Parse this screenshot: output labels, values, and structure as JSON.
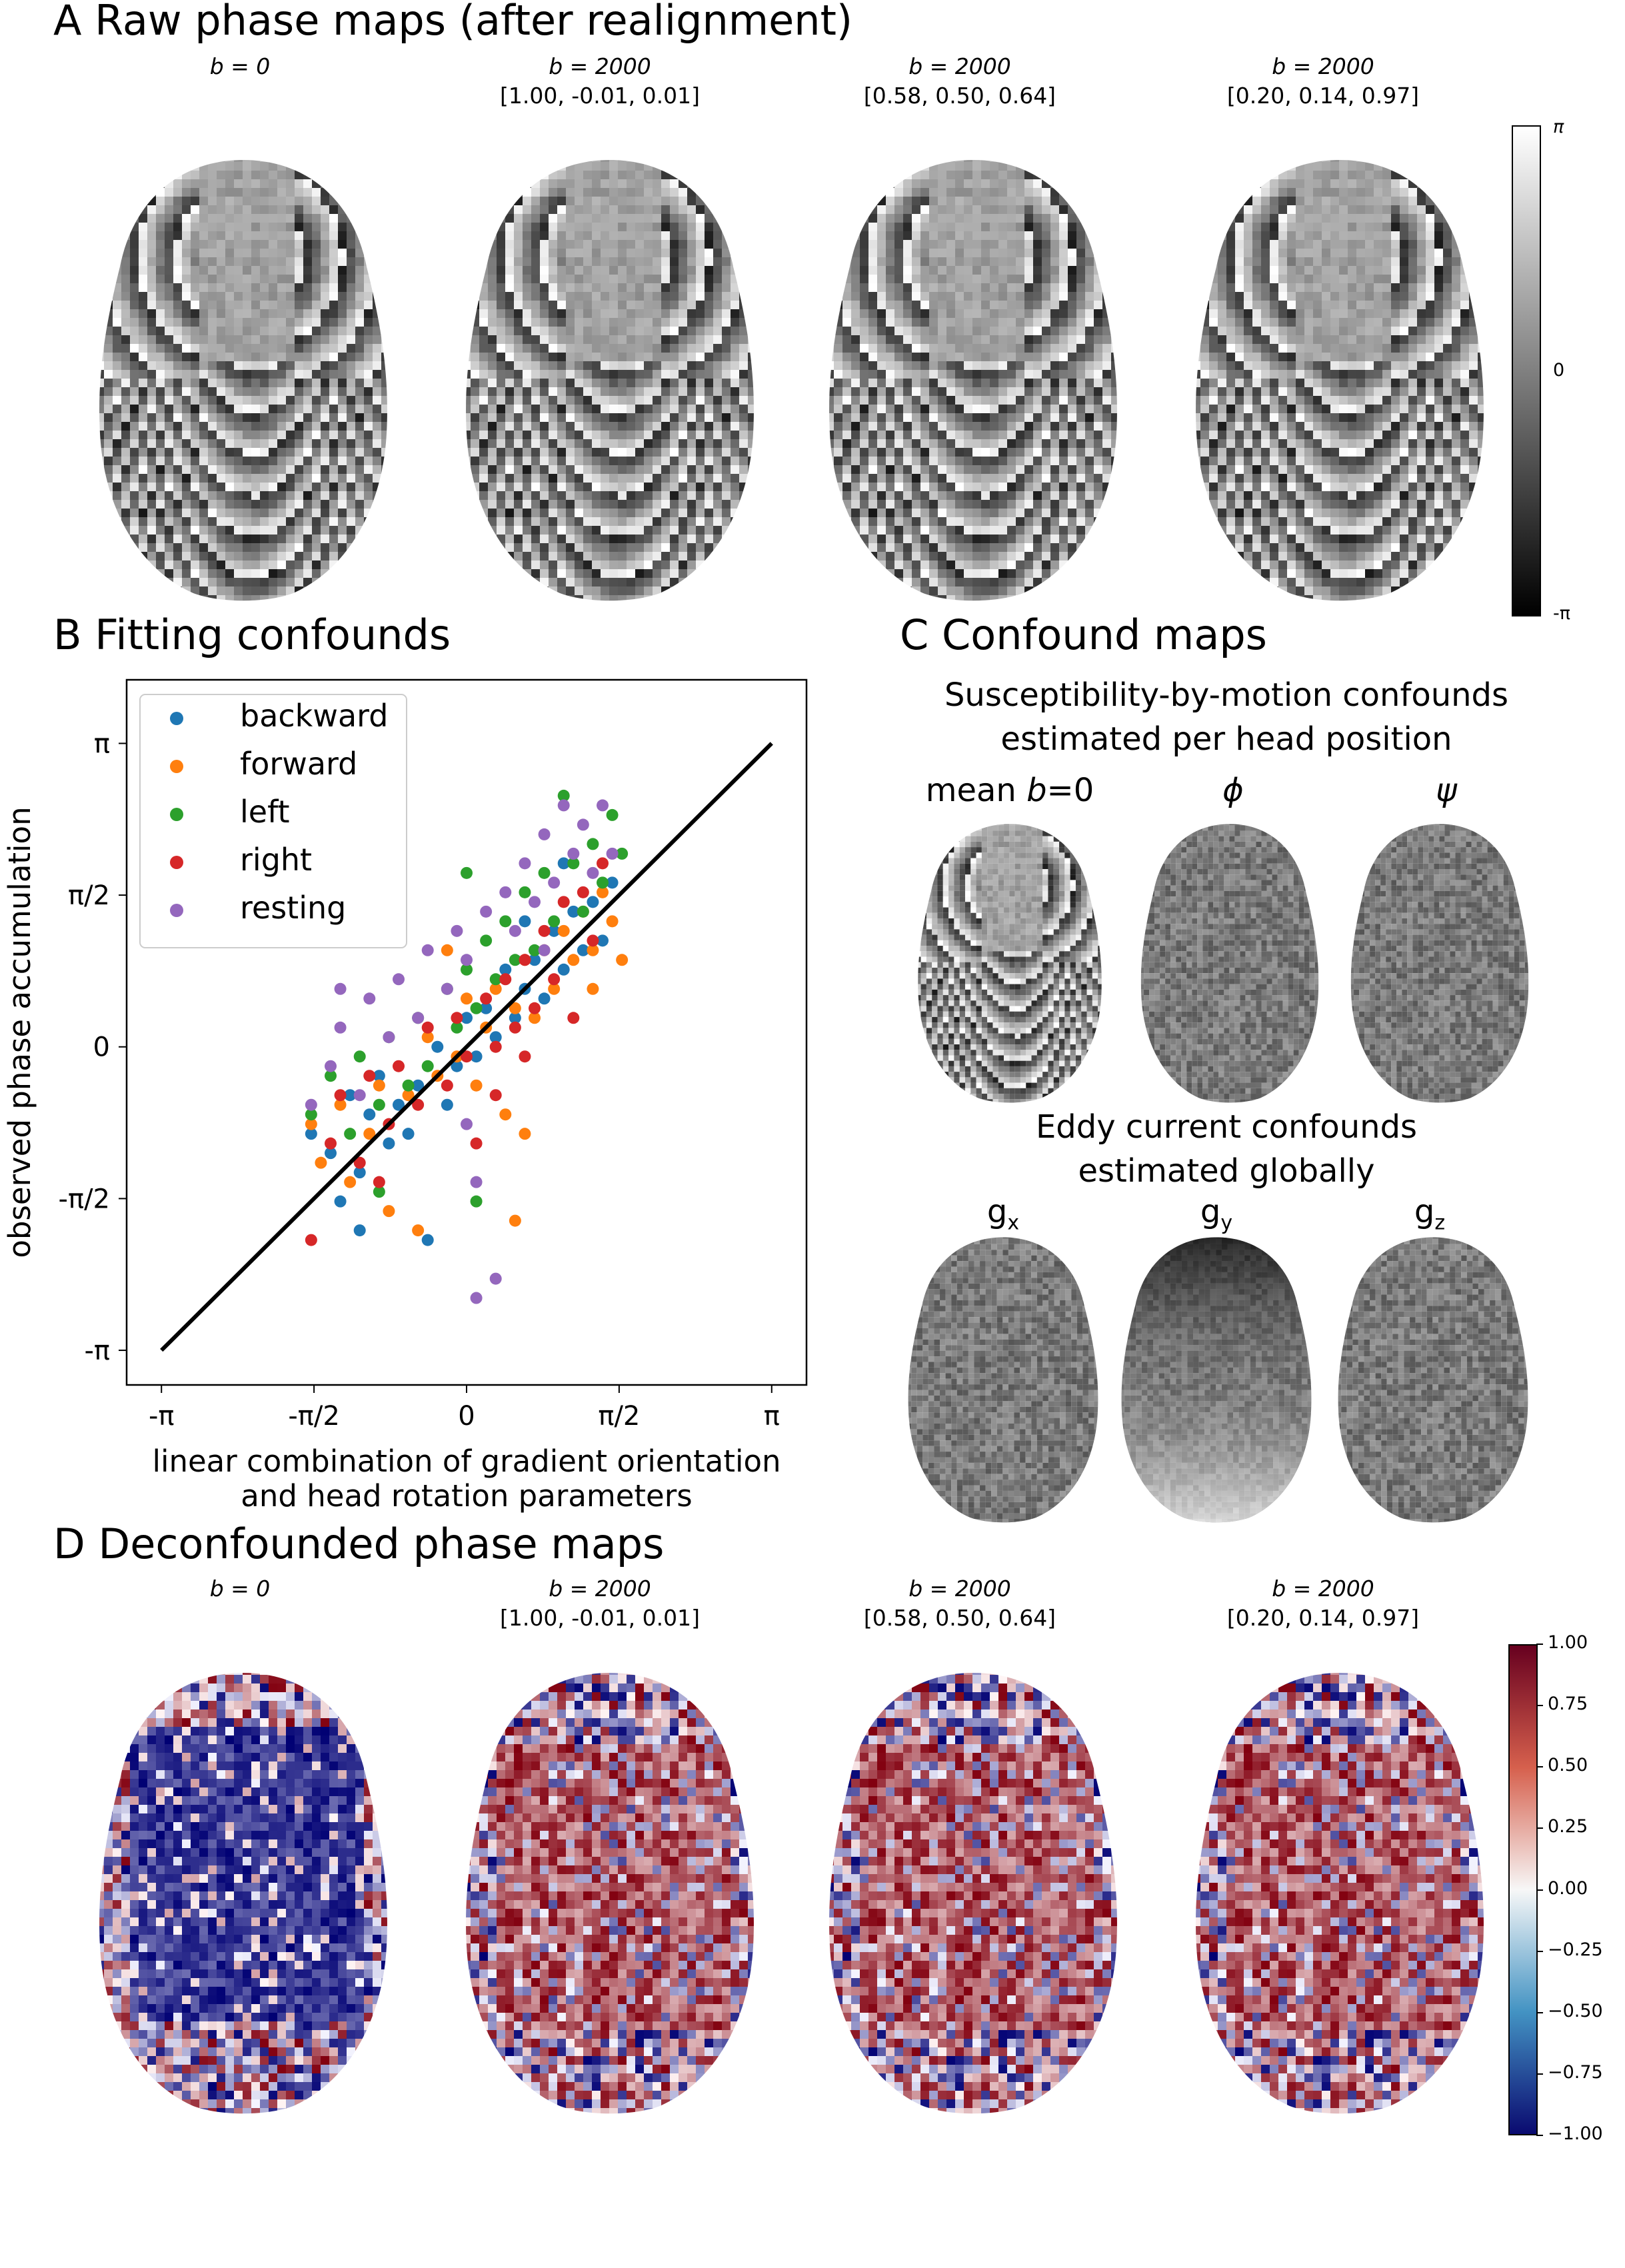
{
  "panelA": {
    "title": "A  Raw phase maps (after realignment)",
    "maps": [
      {
        "b": "b = 0",
        "vec": ""
      },
      {
        "b": "b = 2000",
        "vec": "[1.00, -0.01, 0.01]"
      },
      {
        "b": "b = 2000",
        "vec": "[0.58, 0.50, 0.64]"
      },
      {
        "b": "b = 2000",
        "vec": "[0.20, 0.14, 0.97]"
      }
    ],
    "colorbar": {
      "top": "π",
      "mid": "0",
      "bottom": "-π"
    }
  },
  "panelB": {
    "title": "B  Fitting confounds"
  },
  "panelC": {
    "title": "C  Confound maps",
    "susceptibility_heading": [
      "Susceptibility-by-motion confounds",
      "estimated per head position"
    ],
    "susceptibility_maps": [
      "mean b=0",
      "ϕ",
      "ψ"
    ],
    "eddy_heading": [
      "Eddy current confounds",
      "estimated globally"
    ],
    "eddy_maps": [
      "gx",
      "gy",
      "gz"
    ]
  },
  "panelD": {
    "title": "D  Deconfounded phase maps",
    "maps": [
      {
        "b": "b = 0",
        "vec": ""
      },
      {
        "b": "b = 2000",
        "vec": "[1.00, -0.01, 0.01]"
      },
      {
        "b": "b = 2000",
        "vec": "[0.58, 0.50, 0.64]"
      },
      {
        "b": "b = 2000",
        "vec": "[0.20, 0.14, 0.97]"
      }
    ],
    "colorbar": [
      "1.00",
      "0.75",
      "0.50",
      "0.25",
      "0.00",
      "−0.25",
      "−0.50",
      "−0.75",
      "−1.00"
    ]
  },
  "chart_data": {
    "type": "scatter",
    "xlabel": "linear combination of gradient orientation\nand head rotation parameters",
    "ylabel": "observed phase accumulation",
    "xlim": [
      -3.5,
      3.5
    ],
    "ylim": [
      -3.5,
      3.8
    ],
    "xticks": [
      -3.1416,
      -1.5708,
      0,
      1.5708,
      3.1416
    ],
    "xtick_labels": [
      "-π",
      "-π/2",
      "0",
      "π/2",
      "π"
    ],
    "yticks": [
      -3.1416,
      -1.5708,
      0,
      1.5708,
      3.1416
    ],
    "ytick_labels": [
      "-π",
      "-π/2",
      "0",
      "π/2",
      "π"
    ],
    "legend_position": "top-left",
    "reference_line": {
      "x": [
        -3.1416,
        3.1416
      ],
      "y": [
        -3.1416,
        3.1416
      ],
      "color": "#000000"
    },
    "series": [
      {
        "name": "backward",
        "color": "#1f77b4",
        "points": [
          [
            -1.6,
            -0.9
          ],
          [
            -1.4,
            -1.1
          ],
          [
            -1.2,
            -0.5
          ],
          [
            -1.1,
            -1.3
          ],
          [
            -1.0,
            -0.7
          ],
          [
            -0.9,
            -0.3
          ],
          [
            -0.8,
            -1.0
          ],
          [
            -0.7,
            -0.6
          ],
          [
            -0.5,
            -0.4
          ],
          [
            -0.4,
            -2.0
          ],
          [
            -0.3,
            0.0
          ],
          [
            -0.2,
            -0.6
          ],
          [
            -0.1,
            -0.2
          ],
          [
            0.0,
            0.3
          ],
          [
            0.1,
            -0.1
          ],
          [
            0.2,
            0.4
          ],
          [
            0.3,
            0.1
          ],
          [
            0.4,
            0.8
          ],
          [
            0.5,
            0.3
          ],
          [
            0.6,
            0.6
          ],
          [
            0.7,
            0.9
          ],
          [
            0.8,
            0.5
          ],
          [
            0.9,
            1.2
          ],
          [
            1.0,
            0.8
          ],
          [
            1.1,
            1.4
          ],
          [
            1.2,
            1.0
          ],
          [
            1.3,
            1.5
          ],
          [
            1.4,
            1.1
          ],
          [
            1.5,
            1.7
          ],
          [
            -1.3,
            -1.6
          ],
          [
            -1.1,
            -1.9
          ],
          [
            -0.6,
            -0.9
          ],
          [
            0.6,
            1.3
          ],
          [
            1.0,
            1.9
          ]
        ]
      },
      {
        "name": "forward",
        "color": "#ff7f0e",
        "points": [
          [
            -1.6,
            -0.8
          ],
          [
            -1.5,
            -1.2
          ],
          [
            -1.3,
            -0.6
          ],
          [
            -1.2,
            -1.4
          ],
          [
            -1.0,
            -0.9
          ],
          [
            -0.9,
            -0.4
          ],
          [
            -0.8,
            -1.7
          ],
          [
            -0.6,
            -0.5
          ],
          [
            -0.5,
            -1.9
          ],
          [
            -0.4,
            0.1
          ],
          [
            -0.3,
            -0.3
          ],
          [
            -0.1,
            -0.1
          ],
          [
            0.0,
            0.5
          ],
          [
            0.1,
            -0.4
          ],
          [
            0.2,
            0.2
          ],
          [
            0.3,
            0.6
          ],
          [
            0.4,
            -0.7
          ],
          [
            0.5,
            0.4
          ],
          [
            0.6,
            0.9
          ],
          [
            0.7,
            0.3
          ],
          [
            0.8,
            1.0
          ],
          [
            0.9,
            0.6
          ],
          [
            1.0,
            1.2
          ],
          [
            1.1,
            0.9
          ],
          [
            1.2,
            1.4
          ],
          [
            1.3,
            1.0
          ],
          [
            1.4,
            1.6
          ],
          [
            1.5,
            1.3
          ],
          [
            1.6,
            0.9
          ],
          [
            0.5,
            -1.8
          ],
          [
            -0.2,
            1.0
          ],
          [
            0.6,
            -0.9
          ],
          [
            1.3,
            0.6
          ]
        ]
      },
      {
        "name": "left",
        "color": "#2ca02c",
        "points": [
          [
            -1.6,
            -0.7
          ],
          [
            -1.4,
            -0.3
          ],
          [
            -1.2,
            -0.9
          ],
          [
            -1.1,
            -0.1
          ],
          [
            -0.9,
            -0.6
          ],
          [
            -0.8,
            0.1
          ],
          [
            -0.6,
            -0.4
          ],
          [
            -0.5,
            0.3
          ],
          [
            -0.4,
            -0.2
          ],
          [
            -0.2,
            0.6
          ],
          [
            -0.1,
            0.2
          ],
          [
            0.0,
            0.8
          ],
          [
            0.1,
            0.4
          ],
          [
            0.2,
            1.1
          ],
          [
            0.3,
            0.7
          ],
          [
            0.4,
            1.3
          ],
          [
            0.5,
            0.9
          ],
          [
            0.6,
            1.6
          ],
          [
            0.7,
            1.0
          ],
          [
            0.8,
            1.8
          ],
          [
            0.9,
            1.3
          ],
          [
            1.0,
            2.6
          ],
          [
            1.1,
            1.9
          ],
          [
            1.2,
            1.4
          ],
          [
            1.3,
            2.1
          ],
          [
            1.4,
            1.7
          ],
          [
            1.5,
            2.4
          ],
          [
            1.6,
            2.0
          ],
          [
            0.1,
            -1.6
          ],
          [
            0.0,
            1.8
          ],
          [
            -0.9,
            -1.5
          ]
        ]
      },
      {
        "name": "right",
        "color": "#d62728",
        "points": [
          [
            -1.6,
            -2.0
          ],
          [
            -1.4,
            -1.0
          ],
          [
            -1.3,
            -0.5
          ],
          [
            -1.1,
            -1.2
          ],
          [
            -1.0,
            -0.3
          ],
          [
            -0.8,
            -0.8
          ],
          [
            -0.7,
            -0.2
          ],
          [
            -0.5,
            -0.6
          ],
          [
            -0.4,
            0.2
          ],
          [
            -0.2,
            -0.4
          ],
          [
            -0.1,
            0.3
          ],
          [
            0.0,
            -0.1
          ],
          [
            0.1,
            -1.0
          ],
          [
            0.2,
            0.5
          ],
          [
            0.3,
            0.0
          ],
          [
            0.4,
            0.7
          ],
          [
            0.5,
            0.2
          ],
          [
            0.6,
            0.9
          ],
          [
            0.7,
            0.4
          ],
          [
            0.8,
            1.2
          ],
          [
            0.9,
            0.7
          ],
          [
            1.0,
            1.5
          ],
          [
            1.1,
            0.3
          ],
          [
            1.2,
            1.6
          ],
          [
            1.3,
            1.1
          ],
          [
            1.4,
            1.9
          ],
          [
            0.3,
            -0.5
          ],
          [
            -0.9,
            -1.4
          ],
          [
            0.6,
            -0.1
          ]
        ]
      },
      {
        "name": "resting",
        "color": "#9467bd",
        "points": [
          [
            -1.6,
            -0.6
          ],
          [
            -1.4,
            -0.2
          ],
          [
            -1.3,
            0.2
          ],
          [
            -1.1,
            -0.5
          ],
          [
            -1.0,
            0.5
          ],
          [
            -0.8,
            0.1
          ],
          [
            -0.7,
            0.7
          ],
          [
            -0.5,
            0.3
          ],
          [
            -0.4,
            1.0
          ],
          [
            -0.2,
            0.6
          ],
          [
            -0.1,
            1.2
          ],
          [
            0.0,
            0.9
          ],
          [
            0.1,
            -2.6
          ],
          [
            0.2,
            1.4
          ],
          [
            0.3,
            -2.4
          ],
          [
            0.4,
            1.6
          ],
          [
            0.5,
            1.2
          ],
          [
            0.6,
            1.9
          ],
          [
            0.7,
            1.5
          ],
          [
            0.8,
            2.2
          ],
          [
            0.9,
            1.7
          ],
          [
            1.0,
            2.5
          ],
          [
            1.1,
            2.0
          ],
          [
            1.2,
            2.3
          ],
          [
            1.3,
            1.8
          ],
          [
            1.4,
            2.5
          ],
          [
            1.5,
            2.0
          ],
          [
            0.0,
            -0.8
          ],
          [
            0.1,
            -1.4
          ],
          [
            -1.3,
            0.6
          ],
          [
            0.8,
            1.0
          ]
        ]
      }
    ]
  }
}
